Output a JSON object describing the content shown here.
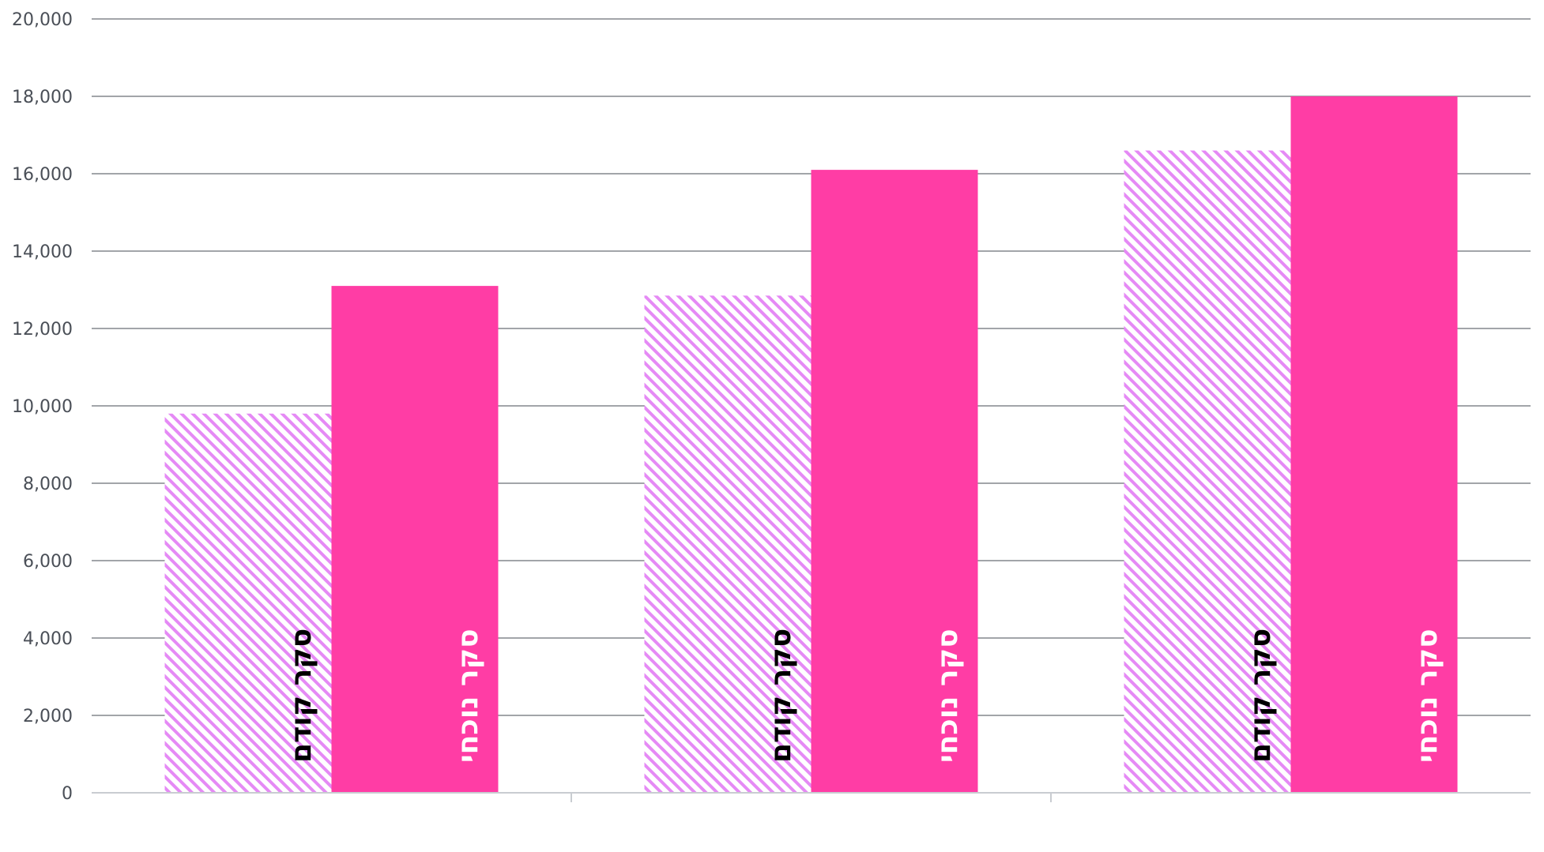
{
  "chart_data": {
    "type": "bar",
    "title": "",
    "xlabel": "",
    "ylabel": "",
    "ylim": [
      0,
      20000
    ],
    "yticks": [
      0,
      2000,
      4000,
      6000,
      8000,
      10000,
      12000,
      14000,
      16000,
      18000,
      20000
    ],
    "ytick_labels": [
      "0",
      "2,000",
      "4,000",
      "6,000",
      "8,000",
      "10,000",
      "12,000",
      "14,000",
      "16,000",
      "18,000",
      "20,000"
    ],
    "categories": [
      "",
      "",
      ""
    ],
    "grid": true,
    "legend": "none",
    "series": [
      {
        "name": "סקר קודם",
        "values": [
          9800,
          12850,
          16600
        ],
        "color": "#e58af5",
        "pattern": "diagonal-hatch",
        "label_color": "#000000"
      },
      {
        "name": "סקר נוכחי",
        "values": [
          13100,
          16100,
          18000
        ],
        "color": "#ff3da5",
        "pattern": "solid",
        "label_color": "#ffffff"
      }
    ]
  }
}
